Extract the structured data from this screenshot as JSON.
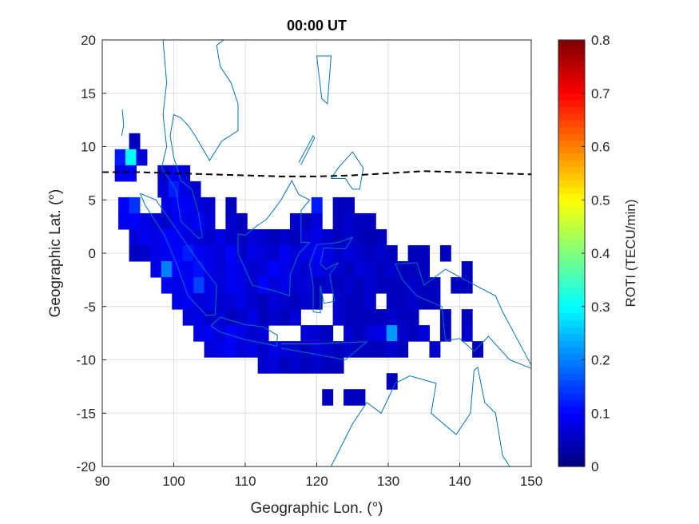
{
  "chart_data": {
    "type": "heatmap",
    "title": "00:00 UT",
    "xlabel": "Geographic Lon. (°)",
    "ylabel": "Geographic Lat. (°)",
    "xlim": [
      90,
      150
    ],
    "ylim": [
      -20,
      20
    ],
    "xticks": [
      90,
      100,
      110,
      120,
      130,
      140,
      150
    ],
    "yticks": [
      20,
      15,
      10,
      5,
      0,
      -5,
      -10,
      -15,
      -20
    ],
    "grid": true,
    "colorbar": {
      "label": "ROTI (TECU/min)",
      "colormap": "jet",
      "range": [
        0,
        0.8
      ],
      "ticks": [
        "0",
        "0.1",
        "0.2",
        "0.3",
        "0.4",
        "0.5",
        "0.6",
        "0.7",
        "0.8"
      ]
    },
    "cell_size_deg": 1.5,
    "rows": [
      {
        "lat": 10.5,
        "lon0": 94.5,
        "roti": [
          0.05
        ]
      },
      {
        "lat": 9,
        "lon0": 92.5,
        "roti": [
          0.12,
          0.3,
          0.07
        ]
      },
      {
        "lat": 7.5,
        "lon0": 92.5,
        "roti": [
          0.08,
          0.1,
          null,
          null,
          0.06,
          0.09,
          0.07
        ]
      },
      {
        "lat": 6,
        "lon0": 98.5,
        "roti": [
          0.07,
          0.12,
          0.08,
          0.06
        ]
      },
      {
        "lat": 4.5,
        "lon0": 93,
        "roti": [
          0.1,
          0.14,
          null,
          null,
          0.08,
          0.1,
          0.09,
          0.07,
          0.06,
          null,
          0.05,
          null,
          null,
          null,
          null,
          null,
          null,
          null,
          0.12,
          null,
          0.05,
          0.05
        ]
      },
      {
        "lat": 3,
        "lon0": 93,
        "roti": [
          0.09,
          0.1,
          0.08,
          0.07,
          0.06,
          0.09,
          0.08,
          0.1,
          0.07,
          null,
          0.06,
          0.05,
          null,
          null,
          null,
          null,
          0.06,
          0.05,
          0.07,
          null,
          0.05,
          0.06,
          0.05,
          0.05
        ]
      },
      {
        "lat": 1.5,
        "lon0": 94.5,
        "roti": [
          0.07,
          0.09,
          0.08,
          0.1,
          0.09,
          0.08,
          0.07,
          0.06,
          0.08,
          0.06,
          0.05,
          0.07,
          0.06,
          0.05,
          0.06,
          0.05,
          0.07,
          0.08,
          0.06,
          0.05,
          0.06,
          0.05,
          0.04,
          0.05
        ]
      },
      {
        "lat": 0,
        "lon0": 94.5,
        "roti": [
          0.05,
          0.06,
          0.08,
          0.09,
          0.1,
          0.12,
          0.09,
          0.08,
          0.07,
          0.1,
          0.06,
          0.08,
          0.07,
          0.06,
          0.09,
          0.07,
          0.08,
          0.1,
          0.08,
          0.06,
          0.07,
          0.06,
          0.05,
          0.06,
          0.05,
          null,
          0.05,
          0.05,
          null,
          0.05
        ]
      },
      {
        "lat": -1.5,
        "lon0": 97.5,
        "roti": [
          0.08,
          0.2,
          0.1,
          0.09,
          0.11,
          0.08,
          0.07,
          0.09,
          0.08,
          0.06,
          0.07,
          0.1,
          0.08,
          0.07,
          0.06,
          0.08,
          0.07,
          0.06,
          0.05,
          0.07,
          0.06,
          0.05,
          0.06,
          0.05,
          0.05,
          0.05,
          null,
          null,
          null,
          0.05
        ]
      },
      {
        "lat": -3,
        "lon0": 99,
        "roti": [
          0.09,
          0.08,
          0.1,
          0.15,
          0.08,
          0.07,
          0.09,
          0.08,
          0.06,
          0.1,
          0.07,
          0.08,
          0.06,
          0.07,
          0.05,
          0.06,
          0.05,
          0.06,
          0.05,
          0.06,
          0.05,
          0.05,
          0.05,
          0.06,
          0.05,
          0.05,
          null,
          0.05,
          0.05
        ]
      },
      {
        "lat": -4.5,
        "lon0": 100.5,
        "roti": [
          0.08,
          0.09,
          0.07,
          0.08,
          0.06,
          0.07,
          0.08,
          0.06,
          0.05,
          0.07,
          0.06,
          0.05,
          0.06,
          0.05,
          null,
          0.06,
          0.05,
          0.05,
          0.06,
          null,
          0.05,
          0.05,
          0.06,
          0.05,
          0.05
        ]
      },
      {
        "lat": -6,
        "lon0": 102,
        "roti": [
          0.07,
          0.08,
          0.06,
          0.07,
          0.05,
          0.06,
          0.08,
          0.05,
          0.06,
          0.05,
          0.07,
          null,
          null,
          null,
          0.06,
          0.05,
          0.05,
          0.05,
          0.05,
          0.06,
          0.05,
          0.05,
          null,
          null,
          0.05,
          null,
          0.05
        ]
      },
      {
        "lat": -7.5,
        "lon0": 103.5,
        "roti": [
          0.08,
          0.09,
          0.07,
          0.1,
          0.08,
          0.06,
          0.07,
          null,
          null,
          null,
          0.07,
          0.06,
          0.05,
          null,
          0.06,
          0.05,
          0.07,
          0.08,
          0.22,
          0.06,
          0.05,
          0.07,
          null,
          0.05,
          null,
          0.06
        ]
      },
      {
        "lat": -9,
        "lon0": 105,
        "roti": [
          0.07,
          0.08,
          0.09,
          0.07,
          0.08,
          0.06,
          0.08,
          0.07,
          0.06,
          0.05,
          0.07,
          0.06,
          0.05,
          0.06,
          0.05,
          0.05,
          0.05,
          0.06,
          0.05,
          null,
          null,
          0.06,
          null,
          null,
          null,
          0.05
        ]
      },
      {
        "lat": -10.5,
        "lon0": 112.5,
        "roti": [
          0.06,
          0.07,
          0.05,
          0.06,
          0.05,
          0.06,
          0.05,
          0.05
        ]
      },
      {
        "lat": -12,
        "lon0": 130.5,
        "roti": [
          0.05
        ]
      },
      {
        "lat": -13.5,
        "lon0": 121.5,
        "roti": [
          0.05,
          null,
          0.05,
          0.05
        ]
      }
    ],
    "magnetic_equator": {
      "style": "dashed black",
      "lon": [
        90,
        95,
        100,
        105,
        110,
        115,
        120,
        125,
        130,
        135,
        140,
        145,
        150
      ],
      "lat": [
        7.6,
        7.6,
        7.5,
        7.4,
        7.3,
        7.2,
        7.2,
        7.3,
        7.5,
        7.7,
        7.6,
        7.5,
        7.4
      ]
    },
    "coastline_color": "#0072BD"
  }
}
